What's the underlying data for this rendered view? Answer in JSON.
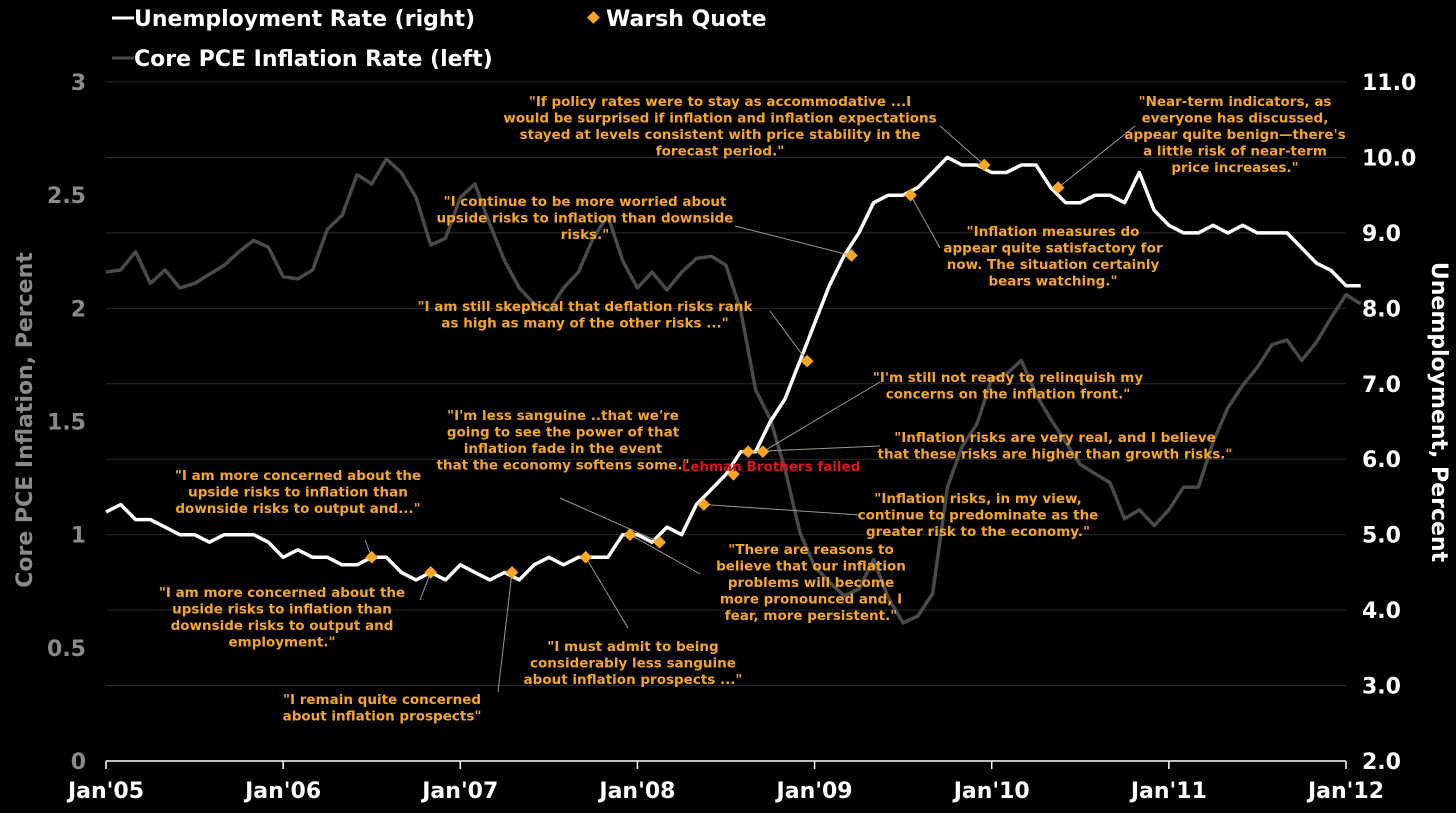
{
  "legend": {
    "unemployment": "Unemployment Rate (right)",
    "warsh": "Warsh Quote",
    "pce": "Core PCE Inflation Rate (left)"
  },
  "colors": {
    "background": "#000000",
    "unemployment": "#ffffff",
    "pce": "#4a4a4a",
    "warsh": "#f5a623",
    "lehman": "#e0141c",
    "grid": "#2a2a2a"
  },
  "chart_data": {
    "type": "line",
    "ylabel_left": "Core PCE Inflation, Percent",
    "ylabel_right": "Unemployment, Percent",
    "x_ticks": [
      "Jan'05",
      "Jan'06",
      "Jan'07",
      "Jan'08",
      "Jan'09",
      "Jan'10",
      "Jan'11",
      "Jan'12"
    ],
    "x_range": [
      2005.0,
      2012.0
    ],
    "ylim_left": [
      0,
      3
    ],
    "ylim_right": [
      2.0,
      11.0
    ],
    "y_ticks_left": [
      "0",
      "0.5",
      "1",
      "1.5",
      "2",
      "2.5",
      "3"
    ],
    "y_ticks_right": [
      "2.0",
      "3.0",
      "4.0",
      "5.0",
      "6.0",
      "7.0",
      "8.0",
      "9.0",
      "10.0",
      "11.0"
    ],
    "grid": true,
    "series": [
      {
        "name": "Unemployment Rate (right)",
        "axis": "right",
        "x": [
          2005.0,
          2005.083,
          2005.167,
          2005.25,
          2005.333,
          2005.417,
          2005.5,
          2005.583,
          2005.667,
          2005.75,
          2005.833,
          2005.917,
          2006.0,
          2006.083,
          2006.167,
          2006.25,
          2006.333,
          2006.417,
          2006.5,
          2006.583,
          2006.667,
          2006.75,
          2006.833,
          2006.917,
          2007.0,
          2007.083,
          2007.167,
          2007.25,
          2007.333,
          2007.417,
          2007.5,
          2007.583,
          2007.667,
          2007.75,
          2007.833,
          2007.917,
          2008.0,
          2008.083,
          2008.167,
          2008.25,
          2008.333,
          2008.417,
          2008.5,
          2008.583,
          2008.667,
          2008.75,
          2008.833,
          2008.917,
          2009.0,
          2009.083,
          2009.167,
          2009.25,
          2009.333,
          2009.417,
          2009.5,
          2009.583,
          2009.667,
          2009.75,
          2009.833,
          2009.917,
          2010.0,
          2010.083,
          2010.167,
          2010.25,
          2010.333,
          2010.417,
          2010.5,
          2010.583,
          2010.667,
          2010.75,
          2010.833,
          2010.917,
          2011.0,
          2011.083,
          2011.167,
          2011.25,
          2011.333,
          2011.417,
          2011.5,
          2011.583,
          2011.667,
          2011.75,
          2011.833,
          2011.917,
          2012.0,
          2012.083
        ],
        "values": [
          5.3,
          5.4,
          5.2,
          5.2,
          5.1,
          5.0,
          5.0,
          4.9,
          5.0,
          5.0,
          5.0,
          4.9,
          4.7,
          4.8,
          4.7,
          4.7,
          4.6,
          4.6,
          4.7,
          4.7,
          4.5,
          4.4,
          4.5,
          4.4,
          4.6,
          4.5,
          4.4,
          4.5,
          4.4,
          4.6,
          4.7,
          4.6,
          4.7,
          4.7,
          4.7,
          5.0,
          5.0,
          4.9,
          5.1,
          5.0,
          5.4,
          5.6,
          5.8,
          6.1,
          6.1,
          6.5,
          6.8,
          7.3,
          7.8,
          8.3,
          8.7,
          9.0,
          9.4,
          9.5,
          9.5,
          9.6,
          9.8,
          10.0,
          9.9,
          9.9,
          9.8,
          9.8,
          9.9,
          9.9,
          9.6,
          9.4,
          9.4,
          9.5,
          9.5,
          9.4,
          9.8,
          9.3,
          9.1,
          9.0,
          9.0,
          9.1,
          9.0,
          9.1,
          9.0,
          9.0,
          9.0,
          8.8,
          8.6,
          8.5,
          8.3,
          8.3
        ]
      },
      {
        "name": "Core PCE Inflation Rate (left)",
        "axis": "left",
        "x": [
          2005.0,
          2005.083,
          2005.167,
          2005.25,
          2005.333,
          2005.417,
          2005.5,
          2005.583,
          2005.667,
          2005.75,
          2005.833,
          2005.917,
          2006.0,
          2006.083,
          2006.167,
          2006.25,
          2006.333,
          2006.417,
          2006.5,
          2006.583,
          2006.667,
          2006.75,
          2006.833,
          2006.917,
          2007.0,
          2007.083,
          2007.167,
          2007.25,
          2007.333,
          2007.417,
          2007.5,
          2007.583,
          2007.667,
          2007.75,
          2007.833,
          2007.917,
          2008.0,
          2008.083,
          2008.167,
          2008.25,
          2008.333,
          2008.417,
          2008.5,
          2008.583,
          2008.667,
          2008.75,
          2008.833,
          2008.917,
          2009.0,
          2009.083,
          2009.167,
          2009.25,
          2009.333,
          2009.417,
          2009.5,
          2009.583,
          2009.667,
          2009.75,
          2009.833,
          2009.917,
          2010.0,
          2010.083,
          2010.167,
          2010.25,
          2010.333,
          2010.417,
          2010.5,
          2010.583,
          2010.667,
          2010.75,
          2010.833,
          2010.917,
          2011.0,
          2011.083,
          2011.167,
          2011.25,
          2011.333,
          2011.417,
          2011.5,
          2011.583,
          2011.667,
          2011.75,
          2011.833,
          2011.917,
          2012.0,
          2012.083
        ],
        "values": [
          2.16,
          2.17,
          2.25,
          2.11,
          2.17,
          2.09,
          2.11,
          2.15,
          2.19,
          2.25,
          2.3,
          2.27,
          2.14,
          2.13,
          2.17,
          2.35,
          2.41,
          2.59,
          2.55,
          2.66,
          2.6,
          2.49,
          2.28,
          2.31,
          2.49,
          2.55,
          2.37,
          2.21,
          2.09,
          2.02,
          1.99,
          2.09,
          2.16,
          2.31,
          2.41,
          2.21,
          2.09,
          2.16,
          2.08,
          2.16,
          2.22,
          2.23,
          2.19,
          1.99,
          1.64,
          1.51,
          1.29,
          1.01,
          0.86,
          0.79,
          0.73,
          0.76,
          0.89,
          0.72,
          0.61,
          0.64,
          0.74,
          1.21,
          1.39,
          1.49,
          1.69,
          1.71,
          1.77,
          1.62,
          1.51,
          1.41,
          1.31,
          1.27,
          1.23,
          1.07,
          1.11,
          1.04,
          1.11,
          1.21,
          1.21,
          1.41,
          1.56,
          1.66,
          1.74,
          1.84,
          1.86,
          1.77,
          1.85,
          1.96,
          2.06,
          2.02
        ]
      }
    ],
    "warsh_quotes": [
      {
        "x": 2006.5,
        "y": 4.7
      },
      {
        "x": 2006.833,
        "y": 4.5
      },
      {
        "x": 2007.292,
        "y": 4.5
      },
      {
        "x": 2007.708,
        "y": 4.7
      },
      {
        "x": 2007.958,
        "y": 5.0
      },
      {
        "x": 2008.125,
        "y": 4.9
      },
      {
        "x": 2008.375,
        "y": 5.4
      },
      {
        "x": 2008.542,
        "y": 5.8
      },
      {
        "x": 2008.625,
        "y": 6.1
      },
      {
        "x": 2008.708,
        "y": 6.1
      },
      {
        "x": 2008.958,
        "y": 7.3
      },
      {
        "x": 2009.208,
        "y": 8.7
      },
      {
        "x": 2009.542,
        "y": 9.5
      },
      {
        "x": 2009.958,
        "y": 9.9
      },
      {
        "x": 2010.375,
        "y": 9.6
      }
    ],
    "annotations": [
      {
        "text": "\"If policy rates were to stay as accommodative ...I\nwould be surprised if inflation and inflation expectations\nstayed at levels consistent with price stability in the\nforecast period.\""
      },
      {
        "text": "\"Near-term indicators, as\neveryone has discussed,\nappear quite benign—there's\na little risk of near-term\nprice increases.\""
      },
      {
        "text": "\"I continue to be more worried about\nupside risks to inflation than downside\nrisks.\""
      },
      {
        "text": "\"Inflation measures do\nappear quite satisfactory for\nnow. The situation certainly\nbears watching.\""
      },
      {
        "text": "\"I am still skeptical that deflation risks rank\nas high as many of the other risks ...\""
      },
      {
        "text": "\"I'm still not ready to relinquish my\nconcerns on the inflation front.\""
      },
      {
        "text": "\"I'm less sanguine ..that we're\ngoing to see the power of that\ninflation fade in the event\nthat the economy softens some.\""
      },
      {
        "text": "\"Inflation risks are very real, and I believe\nthat these risks are higher than growth risks.\""
      },
      {
        "text": "\"I am more concerned about the\nupside risks to inflation than\ndownside risks to output and...\""
      },
      {
        "text": "\"Inflation risks, in my view,\ncontinue to predominate as the\ngreater risk to the economy.\""
      },
      {
        "text": "\"There are reasons to\nbelieve that our inflation\nproblems will become\nmore pronounced and, I\nfear, more persistent.\""
      },
      {
        "text": "\"I am more concerned about the\nupside risks to inflation than\ndownside risks to output and\nemployment.\""
      },
      {
        "text": "\"I must admit to being\nconsiderably less sanguine\nabout inflation prospects ...\""
      },
      {
        "text": "\"I remain quite concerned\nabout inflation prospects\""
      }
    ],
    "event_label": "Lehman Brothers failed"
  }
}
